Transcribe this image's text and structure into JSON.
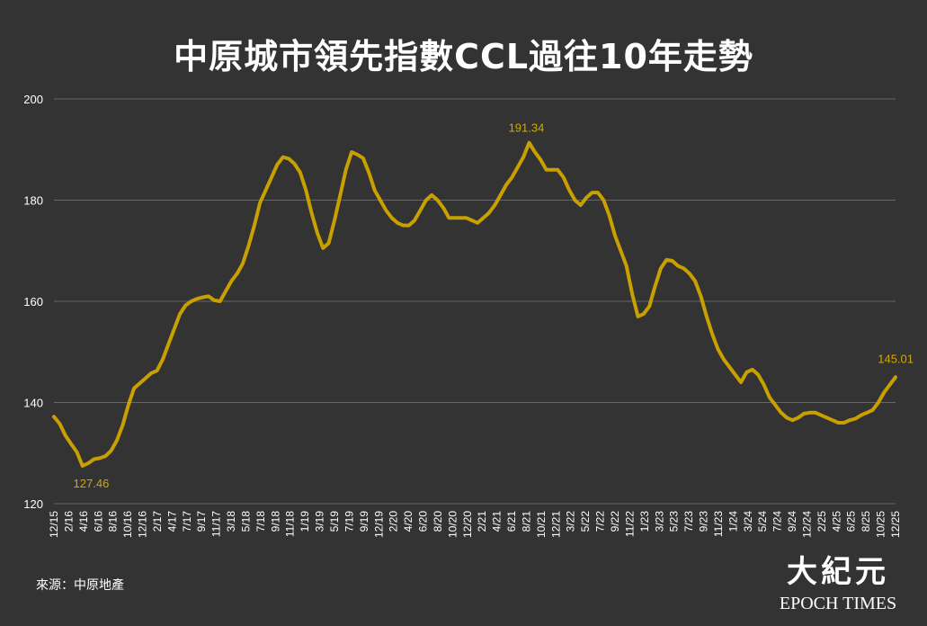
{
  "title": "中原城市領先指數CCL過往10年走勢",
  "source": "來源：中原地產",
  "logo": {
    "chinese": "大紀元",
    "english": "EPOCH TIMES"
  },
  "colors": {
    "background": "#333333",
    "line": "#c8a000",
    "grid": "#666666",
    "text": "#ffffff",
    "label": "#d4a800"
  },
  "chart_data": {
    "type": "line",
    "title": "中原城市領先指數CCL過往10年走勢",
    "ylim": [
      120,
      200
    ],
    "yticks": [
      120,
      140,
      160,
      180,
      200
    ],
    "xticks": [
      "12/15",
      "2/16",
      "4/16",
      "6/16",
      "8/16",
      "10/16",
      "12/16",
      "2/17",
      "4/17",
      "7/17",
      "9/17",
      "11/17",
      "3/18",
      "5/18",
      "7/18",
      "9/18",
      "11/18",
      "1/19",
      "3/19",
      "5/19",
      "7/19",
      "9/19",
      "12/19",
      "2/20",
      "4/20",
      "6/20",
      "8/20",
      "10/20",
      "12/20",
      "2/21",
      "4/21",
      "6/21",
      "8/21",
      "10/21",
      "12/21",
      "3/22",
      "5/22",
      "7/22",
      "9/22",
      "11/22",
      "1/23",
      "3/23",
      "5/23",
      "7/23",
      "9/23",
      "11/23",
      "1/24",
      "3/24",
      "5/24",
      "7/24",
      "9/24",
      "12/24",
      "2/25",
      "4/25",
      "6/25",
      "8/25",
      "10/25",
      "12/25"
    ],
    "x_start": "12/15",
    "x_end": "12/25",
    "grid": true,
    "annotations": [
      {
        "text": "127.46",
        "x": "2/16",
        "y": 127.46
      },
      {
        "text": "191.34",
        "x": "8/21",
        "y": 191.34
      },
      {
        "text": "145.01",
        "x": "12/25",
        "y": 145.01
      }
    ],
    "values": [
      137.2,
      135.8,
      133.5,
      131.8,
      130.2,
      127.46,
      128.0,
      128.8,
      129.0,
      129.4,
      130.5,
      132.5,
      135.5,
      139.5,
      142.8,
      143.8,
      144.8,
      145.8,
      146.3,
      148.5,
      151.5,
      154.5,
      157.5,
      159.2,
      160.0,
      160.5,
      160.8,
      161.0,
      160.2,
      160.0,
      162.0,
      164.0,
      165.5,
      167.5,
      171.0,
      175.0,
      179.5,
      182.0,
      184.5,
      187.0,
      188.5,
      188.2,
      187.2,
      185.5,
      182.0,
      177.5,
      173.5,
      170.5,
      171.5,
      176.0,
      181.0,
      186.0,
      189.5,
      189.0,
      188.3,
      185.5,
      182.0,
      180.0,
      178.0,
      176.5,
      175.5,
      175.0,
      175.0,
      176.0,
      178.0,
      180.0,
      181.0,
      180.0,
      178.5,
      176.5,
      176.5,
      176.5,
      176.5,
      176.0,
      175.5,
      176.5,
      177.5,
      179.0,
      181.0,
      183.0,
      184.5,
      186.5,
      188.5,
      191.34,
      189.5,
      188.0,
      186.0,
      186.0,
      186.0,
      184.5,
      182.0,
      180.0,
      179.0,
      180.5,
      181.5,
      181.5,
      180.0,
      177.0,
      173.0,
      170.0,
      167.0,
      161.5,
      157.0,
      157.5,
      159.0,
      163.0,
      166.5,
      168.2,
      168.0,
      167.0,
      166.5,
      165.5,
      164.0,
      161.0,
      157.0,
      153.5,
      150.5,
      148.5,
      147.0,
      145.5,
      144.0,
      146.0,
      146.5,
      145.5,
      143.5,
      141.0,
      139.5,
      138.0,
      137.0,
      136.5,
      137.0,
      137.8,
      138.0,
      138.0,
      137.5,
      137.0,
      136.5,
      136.0,
      136.0,
      136.5,
      136.8,
      137.5,
      138.0,
      138.5,
      140.0,
      142.0,
      143.5,
      145.01
    ]
  }
}
